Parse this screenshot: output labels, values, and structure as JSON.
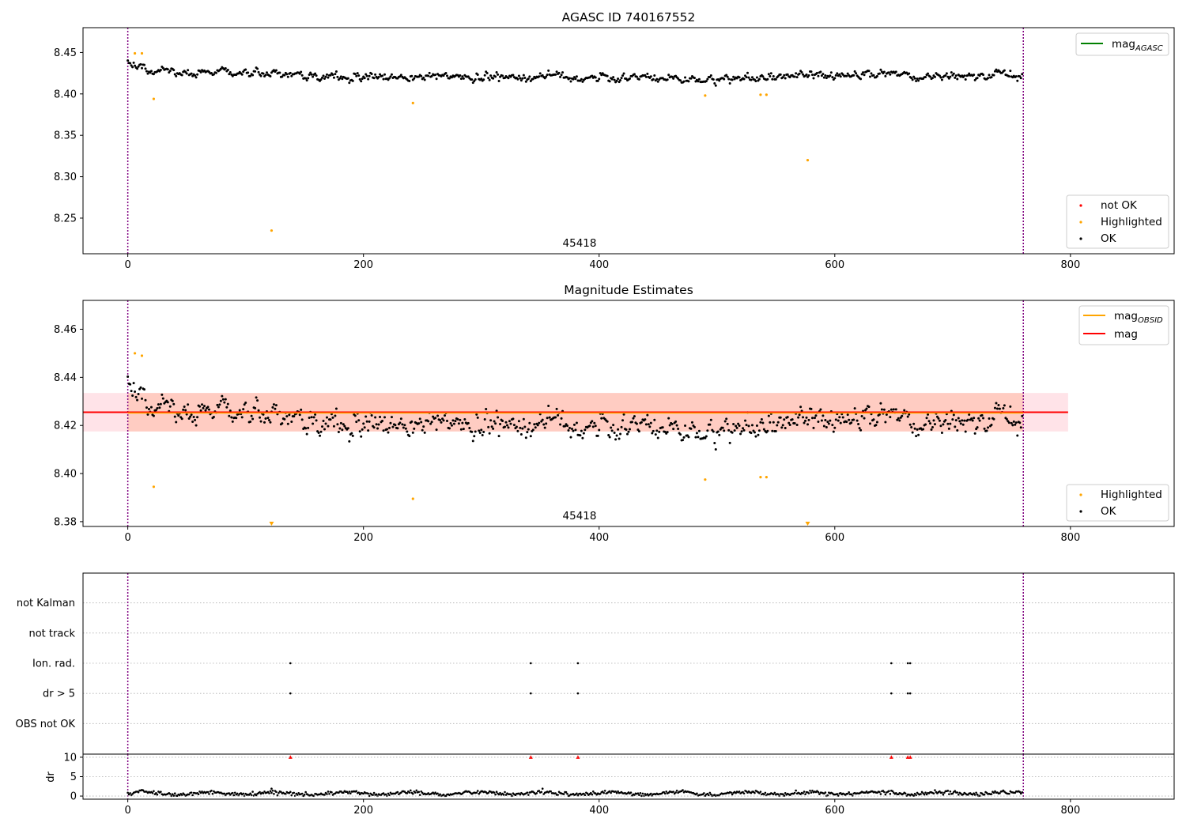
{
  "figure": {
    "obsid_label": "45418"
  },
  "colors": {
    "ok": "#000000",
    "highlighted": "#ffa500",
    "not_ok": "#ff0000",
    "mag_agasc": "#008000",
    "mag_obsid": "#ffa500",
    "mag": "#ff0000",
    "boundary": "#800080",
    "band_mag": "#ffc0cb",
    "band_obsid": "#ffa07a"
  },
  "chart_data": [
    {
      "type": "scatter",
      "title": "AGASC ID 740167552",
      "xlim": [
        -38,
        888
      ],
      "ylim": [
        8.207,
        8.48
      ],
      "xticks": [
        0,
        200,
        400,
        600,
        800
      ],
      "xtick_labels": [
        "0",
        "200",
        "400",
        "600",
        "800"
      ],
      "yticks": [
        8.25,
        8.3,
        8.35,
        8.4,
        8.45
      ],
      "ytick_labels": [
        "8.25",
        "8.30",
        "8.35",
        "8.40",
        "8.45"
      ],
      "obsid_boundaries": [
        0,
        760
      ],
      "obsid_text": "45418",
      "ok_series": {
        "name": "OK",
        "n": 760,
        "mean": 8.4255,
        "noise": 0.0052,
        "dips": [
          [
            20,
            8.432
          ],
          [
            220,
            8.412
          ],
          [
            535,
            8.405
          ],
          [
            575,
            8.413
          ],
          [
            648,
            8.418
          ],
          [
            680,
            8.41
          ],
          [
            710,
            8.41
          ],
          [
            760,
            8.418
          ]
        ]
      },
      "highlighted_points": [
        [
          6,
          8.449
        ],
        [
          12,
          8.449
        ],
        [
          22,
          8.394
        ],
        [
          122,
          8.235
        ],
        [
          242,
          8.389
        ],
        [
          490,
          8.398
        ],
        [
          537,
          8.399
        ],
        [
          542,
          8.399
        ],
        [
          577,
          8.32
        ]
      ],
      "lines_legend": [
        {
          "label": "mag",
          "sub": "AGASC",
          "color": "#008000"
        }
      ],
      "points_legend": [
        {
          "label": "not OK",
          "color": "#ff0000"
        },
        {
          "label": "Highlighted",
          "color": "#ffa500"
        },
        {
          "label": "OK",
          "color": "#000000"
        }
      ]
    },
    {
      "type": "scatter",
      "title": "Magnitude Estimates",
      "xlim": [
        -38,
        888
      ],
      "ylim": [
        8.378,
        8.472
      ],
      "xticks": [
        0,
        200,
        400,
        600,
        800
      ],
      "xtick_labels": [
        "0",
        "200",
        "400",
        "600",
        "800"
      ],
      "yticks": [
        8.38,
        8.4,
        8.42,
        8.44,
        8.46
      ],
      "ytick_labels": [
        "8.38",
        "8.40",
        "8.42",
        "8.44",
        "8.46"
      ],
      "obsid_boundaries": [
        0,
        760
      ],
      "obsid_text": "45418",
      "mag": 8.4255,
      "mag_band": [
        8.4175,
        8.4335
      ],
      "mag_band_x": [
        -38,
        798
      ],
      "mag_obsid": 8.4255,
      "mag_obsid_band": [
        8.4175,
        8.4335
      ],
      "mag_obsid_band_x": [
        0,
        760
      ],
      "highlighted_points": [
        [
          6,
          8.45
        ],
        [
          12,
          8.449
        ],
        [
          22,
          8.3945
        ],
        [
          242,
          8.3895
        ],
        [
          490,
          8.3975
        ],
        [
          537,
          8.3985
        ],
        [
          542,
          8.3985
        ]
      ],
      "below_range_markers": [
        122,
        577
      ],
      "lines_legend": [
        {
          "label": "mag",
          "sub": "OBSID",
          "color": "#ffa500"
        },
        {
          "label": "mag",
          "sub": "",
          "color": "#ff0000"
        }
      ],
      "points_legend": [
        {
          "label": "Highlighted",
          "color": "#ffa500"
        },
        {
          "label": "OK",
          "color": "#000000"
        }
      ]
    },
    {
      "type": "scatter",
      "title": "",
      "xlim": [
        -38,
        888
      ],
      "categories": [
        "not Kalman",
        "not track",
        "Ion. rad.",
        "dr > 5",
        "OBS not OK"
      ],
      "obsid_boundaries": [
        0,
        760
      ],
      "flags": {
        "Ion. rad.": [
          138,
          342,
          382,
          648,
          662,
          664
        ],
        "dr > 5": [
          138,
          342,
          382,
          648,
          662,
          664
        ]
      }
    },
    {
      "type": "scatter",
      "title": "",
      "ylabel": "dr",
      "xlim": [
        -38,
        888
      ],
      "ylim": [
        -0.8,
        10.8
      ],
      "xticks": [
        0,
        200,
        400,
        600,
        800
      ],
      "xtick_labels": [
        "0",
        "200",
        "400",
        "600",
        "800"
      ],
      "yticks": [
        0,
        5,
        10
      ],
      "ytick_labels": [
        "0",
        "5",
        "10"
      ],
      "obsid_boundaries": [
        0,
        760
      ],
      "clipped_markers": [
        138,
        342,
        382,
        648,
        662,
        664
      ],
      "extra_points": [
        [
          122,
          1.9
        ]
      ]
    }
  ]
}
